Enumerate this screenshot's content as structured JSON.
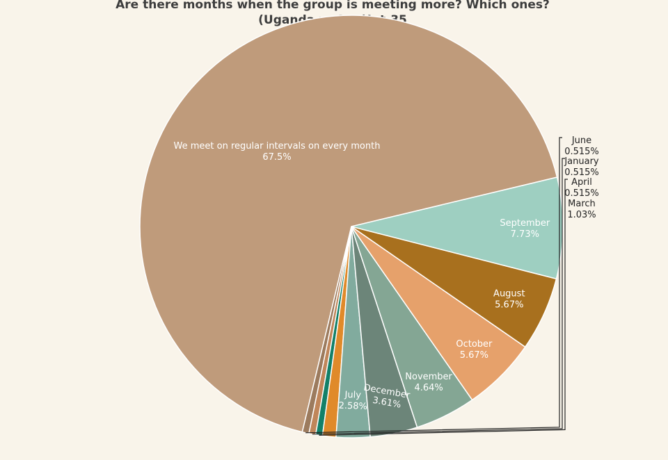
{
  "chart_data": {
    "type": "pie",
    "title_line1": "Are there months when the group is meeting more? Which ones?",
    "title_line2": "(Uganda n=155)Int-35",
    "slices": [
      {
        "label": "We meet on regular intervals on every month",
        "value": 67.5,
        "display": "67.5%",
        "color": "#bf9b7b"
      },
      {
        "label": "June",
        "value": 0.515,
        "display": "0.515%",
        "color": "#9c7b5e"
      },
      {
        "label": "January",
        "value": 0.515,
        "display": "0.515%",
        "color": "#c0865a"
      },
      {
        "label": "April",
        "value": 0.515,
        "display": "0.515%",
        "color": "#138068"
      },
      {
        "label": "March",
        "value": 1.03,
        "display": "1.03%",
        "color": "#e08a2a"
      },
      {
        "label": "July",
        "value": 2.58,
        "display": "2.58%",
        "color": "#81ab9e"
      },
      {
        "label": "December",
        "value": 3.61,
        "display": "3.61%",
        "color": "#6c8579"
      },
      {
        "label": "November",
        "value": 4.64,
        "display": "4.64%",
        "color": "#84a694"
      },
      {
        "label": "October",
        "value": 5.67,
        "display": "5.67%",
        "color": "#e6a16b"
      },
      {
        "label": "August",
        "value": 5.67,
        "display": "5.67%",
        "color": "#a8701e"
      },
      {
        "label": "September",
        "value": 7.73,
        "display": "7.73%",
        "color": "#9ecfc1"
      }
    ]
  }
}
